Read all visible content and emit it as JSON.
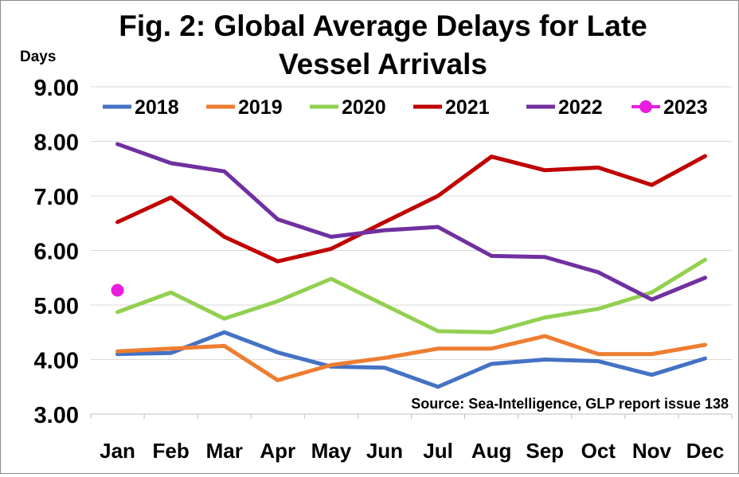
{
  "chart_data": {
    "type": "line",
    "title": "Fig. 2: Global Average Delays for Late Vessel Arrivals",
    "title_lines": [
      "Fig. 2: Global Average Delays for Late",
      "Vessel Arrivals"
    ],
    "ylabel": "Days",
    "ylim": [
      3,
      9
    ],
    "yticks": [
      3,
      4,
      5,
      6,
      7,
      8,
      9
    ],
    "ytick_labels": [
      "3.00",
      "4.00",
      "5.00",
      "6.00",
      "7.00",
      "8.00",
      "9.00"
    ],
    "categories": [
      "Jan",
      "Feb",
      "Mar",
      "Apr",
      "May",
      "Jun",
      "Jul",
      "Aug",
      "Sep",
      "Oct",
      "Nov",
      "Dec"
    ],
    "grid": true,
    "legend_position": "top",
    "source": "Source: Sea-Intelligence, GLP report issue 138",
    "series": [
      {
        "name": "2018",
        "color": "#4472C4",
        "values": [
          4.1,
          4.12,
          4.5,
          4.13,
          3.87,
          3.85,
          3.5,
          3.92,
          4.0,
          3.97,
          3.72,
          4.02
        ]
      },
      {
        "name": "2019",
        "color": "#ED7D31",
        "values": [
          4.15,
          4.2,
          4.25,
          3.62,
          3.9,
          4.03,
          4.2,
          4.2,
          4.43,
          4.1,
          4.1,
          4.27
        ]
      },
      {
        "name": "2020",
        "color": "#92D050",
        "values": [
          4.87,
          5.23,
          4.75,
          5.07,
          5.48,
          5.0,
          4.52,
          4.5,
          4.77,
          4.93,
          5.23,
          5.83
        ]
      },
      {
        "name": "2021",
        "color": "#C00000",
        "values": [
          6.52,
          6.97,
          6.25,
          5.8,
          6.03,
          6.52,
          7.0,
          7.72,
          7.47,
          7.52,
          7.2,
          7.73
        ]
      },
      {
        "name": "2022",
        "color": "#7030A0",
        "values": [
          7.95,
          7.6,
          7.45,
          6.57,
          6.25,
          6.37,
          6.43,
          5.9,
          5.88,
          5.6,
          5.1,
          5.5
        ]
      },
      {
        "name": "2023",
        "color": "#E81DE0",
        "marker": "point",
        "values": [
          5.27,
          null,
          null,
          null,
          null,
          null,
          null,
          null,
          null,
          null,
          null,
          null
        ]
      }
    ]
  }
}
